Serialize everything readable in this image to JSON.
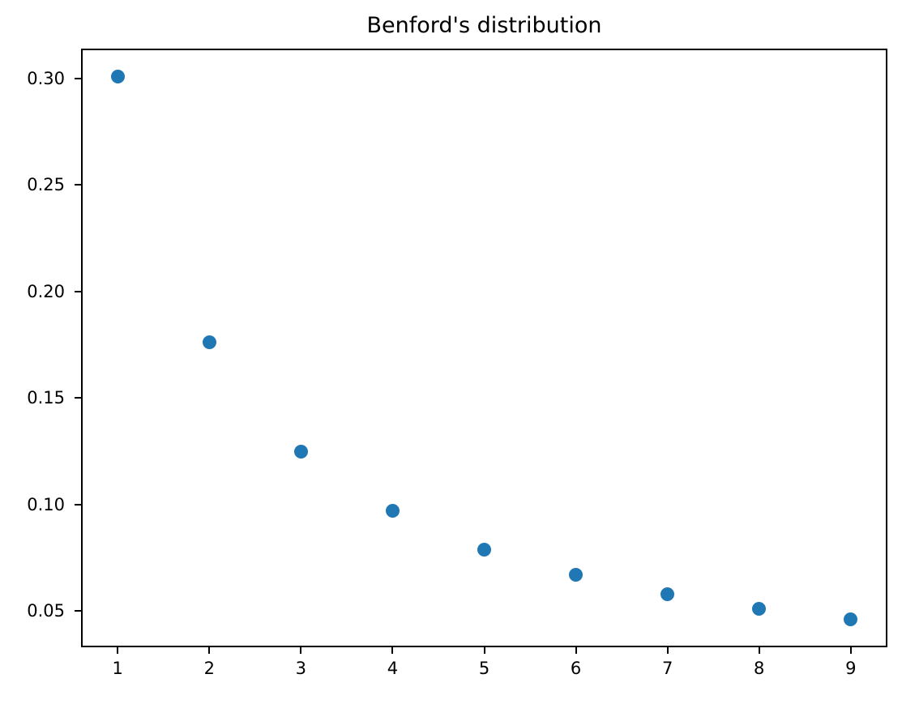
{
  "figure": {
    "background": "#ffffff",
    "spine_color": "#000000",
    "text_color": "#000000"
  },
  "chart_data": {
    "type": "scatter",
    "title": "Benford's distribution",
    "xlabel": "",
    "ylabel": "",
    "x": [
      1,
      2,
      3,
      4,
      5,
      6,
      7,
      8,
      9
    ],
    "y": [
      0.301,
      0.176,
      0.125,
      0.097,
      0.079,
      0.067,
      0.058,
      0.051,
      0.046
    ],
    "xlim": [
      0.6,
      9.4
    ],
    "ylim": [
      0.033,
      0.314
    ],
    "x_ticks": [
      1,
      2,
      3,
      4,
      5,
      6,
      7,
      8,
      9
    ],
    "x_tick_labels": [
      "1",
      "2",
      "3",
      "4",
      "5",
      "6",
      "7",
      "8",
      "9"
    ],
    "y_ticks": [
      0.05,
      0.1,
      0.15,
      0.2,
      0.25,
      0.3
    ],
    "y_tick_labels": [
      "0.05",
      "0.10",
      "0.15",
      "0.20",
      "0.25",
      "0.30"
    ],
    "marker_color": "#1f77b4",
    "marker_diameter_px": 17,
    "grid": false,
    "legend": null
  }
}
